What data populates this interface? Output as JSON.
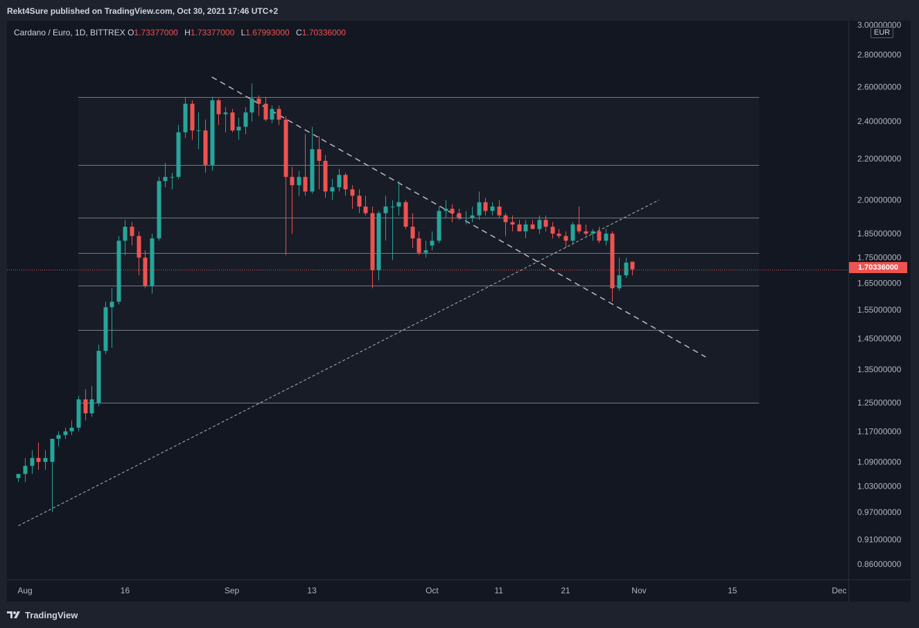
{
  "header": {
    "published_by": "Rekt4Sure published on TradingView.com, Oct 30, 2021 17:46 UTC+2"
  },
  "legend": {
    "symbol": "Cardano / Euro, 1D, BITTREX",
    "open_label": "O",
    "open_value": "1.73377000",
    "high_label": "H",
    "high_value": "1.73377000",
    "low_label": "L",
    "low_value": "1.67993000",
    "close_label": "C",
    "close_value": "1.70336000"
  },
  "price_axis": {
    "currency": "EUR",
    "last_price": "1.70336000",
    "ticks": [
      "3.00000000",
      "2.80000000",
      "2.60000000",
      "2.40000000",
      "2.20000000",
      "2.00000000",
      "1.85000000",
      "1.75000000",
      "1.65000000",
      "1.55000000",
      "1.45000000",
      "1.35000000",
      "1.25000000",
      "1.17000000",
      "1.09000000",
      "1.03000000",
      "0.97000000",
      "0.91000000",
      "0.86000000"
    ]
  },
  "footer": {
    "brand": "TradingView"
  },
  "colors": {
    "up": "#26a69a",
    "down": "#ef5350",
    "background": "#131722",
    "frame": "#1e222d",
    "text": "#d1d4dc",
    "level_line": "#787b86"
  },
  "icons": {
    "brand_logo": "tradingview-logo-icon"
  },
  "chart_data": {
    "type": "candlestick",
    "symbol": "Cardano / Euro",
    "interval": "1D",
    "exchange": "BITTREX",
    "currency": "EUR",
    "y_scale": "log",
    "x_tick_labels": [
      "Aug",
      "16",
      "Sep",
      "13",
      "Oct",
      "11",
      "21",
      "Nov",
      "15",
      "Dec"
    ],
    "x_tick_dates": [
      "2021-08-01",
      "2021-08-16",
      "2021-09-01",
      "2021-09-13",
      "2021-10-01",
      "2021-10-11",
      "2021-10-21",
      "2021-11-01",
      "2021-11-15",
      "2021-12-01"
    ],
    "y_ticks": [
      3.0,
      2.8,
      2.6,
      2.4,
      2.2,
      2.0,
      1.85,
      1.75,
      1.65,
      1.55,
      1.45,
      1.35,
      1.25,
      1.17,
      1.09,
      1.03,
      0.97,
      0.91,
      0.86
    ],
    "y_range": [
      0.83,
      3.03
    ],
    "last_close": 1.70336,
    "horizontal_levels": [
      2.54,
      2.17,
      1.92,
      1.77,
      1.64,
      1.48,
      1.25
    ],
    "levels_range": [
      "2021-08-09",
      "2021-11-19"
    ],
    "trendlines": [
      {
        "style": "dashed-thick",
        "from": [
          "2021-08-29",
          2.66
        ],
        "to": [
          "2021-11-11",
          1.39
        ]
      },
      {
        "style": "dotted-thin",
        "from": [
          "2021-07-31",
          0.94
        ],
        "to": [
          "2021-11-04",
          2.0
        ]
      }
    ],
    "candles": [
      {
        "date": "2021-07-31",
        "open": 1.05,
        "high": 1.06,
        "low": 1.04,
        "close": 1.06
      },
      {
        "date": "2021-08-01",
        "open": 1.06,
        "high": 1.1,
        "low": 1.04,
        "close": 1.08
      },
      {
        "date": "2021-08-02",
        "open": 1.08,
        "high": 1.12,
        "low": 1.06,
        "close": 1.1
      },
      {
        "date": "2021-08-03",
        "open": 1.1,
        "high": 1.14,
        "low": 1.07,
        "close": 1.09
      },
      {
        "date": "2021-08-04",
        "open": 1.09,
        "high": 1.12,
        "low": 1.07,
        "close": 1.1
      },
      {
        "date": "2021-08-05",
        "open": 1.09,
        "high": 1.14,
        "low": 0.97,
        "close": 1.15
      },
      {
        "date": "2021-08-06",
        "open": 1.15,
        "high": 1.17,
        "low": 1.13,
        "close": 1.16
      },
      {
        "date": "2021-08-07",
        "open": 1.16,
        "high": 1.18,
        "low": 1.15,
        "close": 1.17
      },
      {
        "date": "2021-08-08",
        "open": 1.17,
        "high": 1.2,
        "low": 1.16,
        "close": 1.18
      },
      {
        "date": "2021-08-09",
        "open": 1.18,
        "high": 1.27,
        "low": 1.17,
        "close": 1.26
      },
      {
        "date": "2021-08-10",
        "open": 1.26,
        "high": 1.29,
        "low": 1.2,
        "close": 1.22
      },
      {
        "date": "2021-08-11",
        "open": 1.22,
        "high": 1.3,
        "low": 1.21,
        "close": 1.26
      },
      {
        "date": "2021-08-12",
        "open": 1.25,
        "high": 1.43,
        "low": 1.24,
        "close": 1.41
      },
      {
        "date": "2021-08-13",
        "open": 1.41,
        "high": 1.58,
        "low": 1.4,
        "close": 1.56
      },
      {
        "date": "2021-08-14",
        "open": 1.56,
        "high": 1.63,
        "low": 1.42,
        "close": 1.58
      },
      {
        "date": "2021-08-15",
        "open": 1.58,
        "high": 1.84,
        "low": 1.57,
        "close": 1.82
      },
      {
        "date": "2021-08-16",
        "open": 1.82,
        "high": 1.91,
        "low": 1.76,
        "close": 1.88
      },
      {
        "date": "2021-08-17",
        "open": 1.88,
        "high": 1.9,
        "low": 1.8,
        "close": 1.84
      },
      {
        "date": "2021-08-18",
        "open": 1.84,
        "high": 1.86,
        "low": 1.68,
        "close": 1.75
      },
      {
        "date": "2021-08-19",
        "open": 1.75,
        "high": 1.78,
        "low": 1.63,
        "close": 1.64
      },
      {
        "date": "2021-08-20",
        "open": 1.64,
        "high": 1.85,
        "low": 1.61,
        "close": 1.83
      },
      {
        "date": "2021-08-21",
        "open": 1.83,
        "high": 2.11,
        "low": 1.82,
        "close": 2.09
      },
      {
        "date": "2021-08-22",
        "open": 2.09,
        "high": 2.18,
        "low": 2.06,
        "close": 2.11
      },
      {
        "date": "2021-08-23",
        "open": 2.11,
        "high": 2.13,
        "low": 2.05,
        "close": 2.11
      },
      {
        "date": "2021-08-24",
        "open": 2.11,
        "high": 2.38,
        "low": 2.1,
        "close": 2.34
      },
      {
        "date": "2021-08-25",
        "open": 2.34,
        "high": 2.54,
        "low": 2.31,
        "close": 2.5
      },
      {
        "date": "2021-08-26",
        "open": 2.5,
        "high": 2.52,
        "low": 2.3,
        "close": 2.35
      },
      {
        "date": "2021-08-27",
        "open": 2.35,
        "high": 2.45,
        "low": 2.25,
        "close": 2.35
      },
      {
        "date": "2021-08-28",
        "open": 2.35,
        "high": 2.41,
        "low": 2.13,
        "close": 2.17
      },
      {
        "date": "2021-08-29",
        "open": 2.17,
        "high": 2.54,
        "low": 2.14,
        "close": 2.52
      },
      {
        "date": "2021-08-30",
        "open": 2.52,
        "high": 2.53,
        "low": 2.38,
        "close": 2.44
      },
      {
        "date": "2021-08-31",
        "open": 2.44,
        "high": 2.48,
        "low": 2.34,
        "close": 2.45
      },
      {
        "date": "2021-09-01",
        "open": 2.45,
        "high": 2.47,
        "low": 2.34,
        "close": 2.35
      },
      {
        "date": "2021-09-02",
        "open": 2.35,
        "high": 2.42,
        "low": 2.3,
        "close": 2.37
      },
      {
        "date": "2021-09-03",
        "open": 2.37,
        "high": 2.48,
        "low": 2.33,
        "close": 2.45
      },
      {
        "date": "2021-09-04",
        "open": 2.45,
        "high": 2.62,
        "low": 2.4,
        "close": 2.53
      },
      {
        "date": "2021-09-05",
        "open": 2.53,
        "high": 2.55,
        "low": 2.43,
        "close": 2.5
      },
      {
        "date": "2021-09-06",
        "open": 2.5,
        "high": 2.54,
        "low": 2.4,
        "close": 2.41
      },
      {
        "date": "2021-09-07",
        "open": 2.41,
        "high": 2.49,
        "low": 2.39,
        "close": 2.47
      },
      {
        "date": "2021-09-08",
        "open": 2.47,
        "high": 2.49,
        "low": 2.38,
        "close": 2.41
      },
      {
        "date": "2021-09-09",
        "open": 2.41,
        "high": 2.43,
        "low": 1.76,
        "close": 2.11
      },
      {
        "date": "2021-09-10",
        "open": 2.11,
        "high": 2.16,
        "low": 1.85,
        "close": 2.07
      },
      {
        "date": "2021-09-11",
        "open": 2.07,
        "high": 2.14,
        "low": 2.02,
        "close": 2.11
      },
      {
        "date": "2021-09-12",
        "open": 2.11,
        "high": 2.33,
        "low": 2.02,
        "close": 2.04
      },
      {
        "date": "2021-09-13",
        "open": 2.04,
        "high": 2.37,
        "low": 2.03,
        "close": 2.25
      },
      {
        "date": "2021-09-14",
        "open": 2.25,
        "high": 2.32,
        "low": 2.05,
        "close": 2.19
      },
      {
        "date": "2021-09-15",
        "open": 2.19,
        "high": 2.22,
        "low": 2.01,
        "close": 2.04
      },
      {
        "date": "2021-09-16",
        "open": 2.04,
        "high": 2.1,
        "low": 2.0,
        "close": 2.06
      },
      {
        "date": "2021-09-17",
        "open": 2.06,
        "high": 2.15,
        "low": 2.04,
        "close": 2.12
      },
      {
        "date": "2021-09-18",
        "open": 2.12,
        "high": 2.13,
        "low": 2.02,
        "close": 2.05
      },
      {
        "date": "2021-09-19",
        "open": 2.05,
        "high": 2.07,
        "low": 1.96,
        "close": 2.02
      },
      {
        "date": "2021-09-20",
        "open": 2.02,
        "high": 2.05,
        "low": 1.94,
        "close": 1.97
      },
      {
        "date": "2021-09-21",
        "open": 1.97,
        "high": 2.02,
        "low": 1.93,
        "close": 1.94
      },
      {
        "date": "2021-09-22",
        "open": 1.94,
        "high": 1.97,
        "low": 1.63,
        "close": 1.7
      },
      {
        "date": "2021-09-23",
        "open": 1.7,
        "high": 1.95,
        "low": 1.66,
        "close": 1.94
      },
      {
        "date": "2021-09-24",
        "open": 1.94,
        "high": 2.02,
        "low": 1.82,
        "close": 1.97
      },
      {
        "date": "2021-09-25",
        "open": 1.97,
        "high": 2.0,
        "low": 1.74,
        "close": 1.97
      },
      {
        "date": "2021-09-26",
        "open": 1.97,
        "high": 2.09,
        "low": 1.93,
        "close": 1.99
      },
      {
        "date": "2021-09-27",
        "open": 1.99,
        "high": 2.0,
        "low": 1.87,
        "close": 1.88
      },
      {
        "date": "2021-09-28",
        "open": 1.88,
        "high": 1.94,
        "low": 1.79,
        "close": 1.83
      },
      {
        "date": "2021-09-29",
        "open": 1.83,
        "high": 1.86,
        "low": 1.76,
        "close": 1.77
      },
      {
        "date": "2021-09-30",
        "open": 1.77,
        "high": 1.82,
        "low": 1.75,
        "close": 1.78
      },
      {
        "date": "2021-10-01",
        "open": 1.8,
        "high": 1.86,
        "low": 1.78,
        "close": 1.82
      },
      {
        "date": "2021-10-02",
        "open": 1.82,
        "high": 1.97,
        "low": 1.81,
        "close": 1.95
      },
      {
        "date": "2021-10-03",
        "open": 1.95,
        "high": 2.0,
        "low": 1.92,
        "close": 1.96
      },
      {
        "date": "2021-10-04",
        "open": 1.96,
        "high": 1.98,
        "low": 1.9,
        "close": 1.94
      },
      {
        "date": "2021-10-05",
        "open": 1.94,
        "high": 1.96,
        "low": 1.91,
        "close": 1.92
      },
      {
        "date": "2021-10-06",
        "open": 1.92,
        "high": 1.95,
        "low": 1.89,
        "close": 1.92
      },
      {
        "date": "2021-10-07",
        "open": 1.92,
        "high": 1.97,
        "low": 1.9,
        "close": 1.93
      },
      {
        "date": "2021-10-08",
        "open": 1.93,
        "high": 2.04,
        "low": 1.91,
        "close": 1.99
      },
      {
        "date": "2021-10-09",
        "open": 1.99,
        "high": 2.01,
        "low": 1.93,
        "close": 1.95
      },
      {
        "date": "2021-10-10",
        "open": 1.95,
        "high": 1.99,
        "low": 1.93,
        "close": 1.97
      },
      {
        "date": "2021-10-11",
        "open": 1.97,
        "high": 2.0,
        "low": 1.92,
        "close": 1.93
      },
      {
        "date": "2021-10-12",
        "open": 1.93,
        "high": 1.94,
        "low": 1.84,
        "close": 1.9
      },
      {
        "date": "2021-10-13",
        "open": 1.9,
        "high": 1.93,
        "low": 1.86,
        "close": 1.89
      },
      {
        "date": "2021-10-14",
        "open": 1.89,
        "high": 1.91,
        "low": 1.86,
        "close": 1.86
      },
      {
        "date": "2021-10-15",
        "open": 1.86,
        "high": 1.91,
        "low": 1.83,
        "close": 1.89
      },
      {
        "date": "2021-10-16",
        "open": 1.89,
        "high": 1.91,
        "low": 1.87,
        "close": 1.87
      },
      {
        "date": "2021-10-17",
        "open": 1.87,
        "high": 1.93,
        "low": 1.85,
        "close": 1.91
      },
      {
        "date": "2021-10-18",
        "open": 1.91,
        "high": 1.93,
        "low": 1.86,
        "close": 1.88
      },
      {
        "date": "2021-10-19",
        "open": 1.88,
        "high": 1.9,
        "low": 1.83,
        "close": 1.85
      },
      {
        "date": "2021-10-20",
        "open": 1.85,
        "high": 1.87,
        "low": 1.83,
        "close": 1.84
      },
      {
        "date": "2021-10-21",
        "open": 1.84,
        "high": 1.86,
        "low": 1.79,
        "close": 1.82
      },
      {
        "date": "2021-10-22",
        "open": 1.82,
        "high": 1.9,
        "low": 1.81,
        "close": 1.89
      },
      {
        "date": "2021-10-23",
        "open": 1.89,
        "high": 1.97,
        "low": 1.85,
        "close": 1.86
      },
      {
        "date": "2021-10-24",
        "open": 1.86,
        "high": 1.89,
        "low": 1.84,
        "close": 1.85
      },
      {
        "date": "2021-10-25",
        "open": 1.85,
        "high": 1.87,
        "low": 1.82,
        "close": 1.86
      },
      {
        "date": "2021-10-26",
        "open": 1.86,
        "high": 1.88,
        "low": 1.81,
        "close": 1.82
      },
      {
        "date": "2021-10-27",
        "open": 1.82,
        "high": 1.87,
        "low": 1.8,
        "close": 1.85
      },
      {
        "date": "2021-10-28",
        "open": 1.85,
        "high": 1.86,
        "low": 1.58,
        "close": 1.63
      },
      {
        "date": "2021-10-29",
        "open": 1.63,
        "high": 1.75,
        "low": 1.62,
        "close": 1.68
      },
      {
        "date": "2021-10-30",
        "open": 1.68,
        "high": 1.75,
        "low": 1.67,
        "close": 1.73
      },
      {
        "date": "2021-10-31",
        "open": 1.73377,
        "high": 1.73377,
        "low": 1.67993,
        "close": 1.70336
      }
    ]
  }
}
